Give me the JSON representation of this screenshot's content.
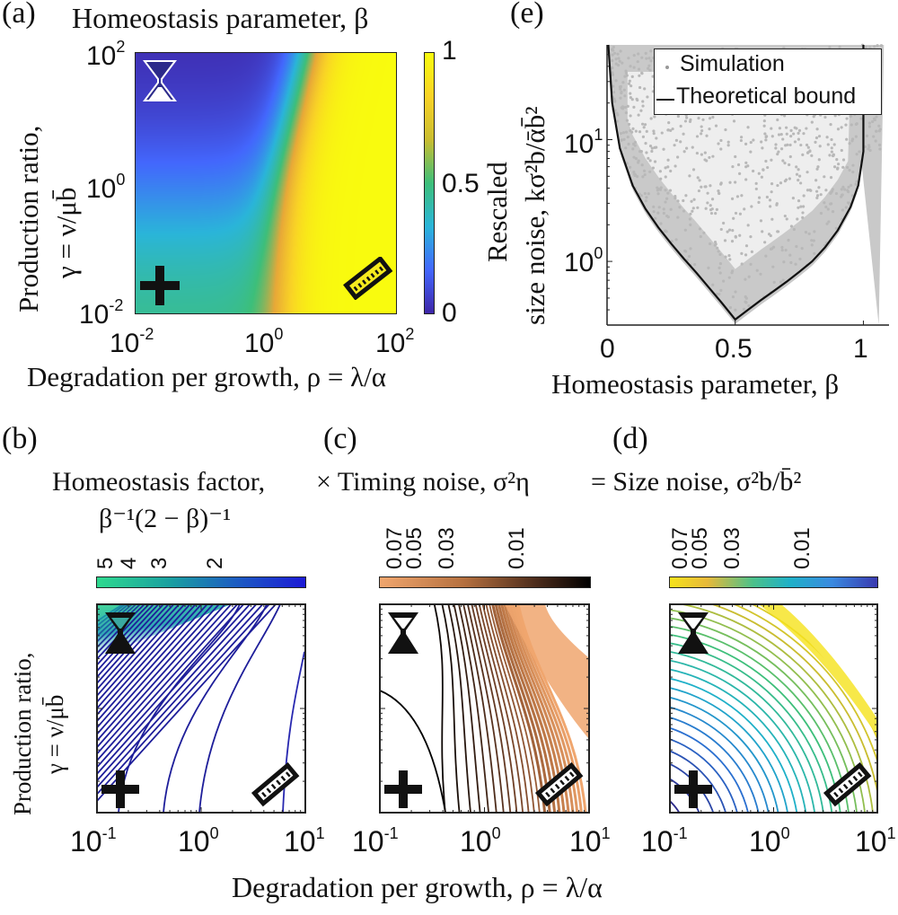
{
  "figure": {
    "panel_labels": [
      "(a)",
      "(b)",
      "(c)",
      "(d)",
      "(e)"
    ],
    "shared_x_axis_label": "Degradation per growth, ρ = λ/α",
    "shared_y_axis_label_line1": "Production ratio,",
    "shared_y_axis_label_line2": "γ = ν/μb̄",
    "bottom_row_title_parts": [
      "Homeostasis factor,",
      "× Timing noise, σ²η",
      "= Size noise, σ²b/b̄²"
    ],
    "icons": [
      "hourglass-icon",
      "plus-icon",
      "ruler-icon"
    ]
  },
  "chart_data": [
    {
      "id": "a",
      "type": "heatmap",
      "title": "Homeostasis parameter, β",
      "xlabel": "Degradation per growth, ρ = λ/α",
      "ylabel": "Production ratio, γ = ν/μb̄",
      "xscale": "log",
      "yscale": "log",
      "xlim": [
        0.01,
        100
      ],
      "ylim": [
        0.01,
        100
      ],
      "xticks": [
        {
          "base": "10",
          "exp": "-2"
        },
        {
          "base": "10",
          "exp": "0"
        },
        {
          "base": "10",
          "exp": "2"
        }
      ],
      "yticks": [
        {
          "base": "10",
          "exp": "-2"
        },
        {
          "base": "10",
          "exp": "0"
        },
        {
          "base": "10",
          "exp": "2"
        }
      ],
      "colorbar": {
        "label": "β",
        "range": [
          0,
          1
        ],
        "ticks": [
          "0",
          "0.5",
          "1"
        ],
        "colormap": "parula"
      },
      "corner_markers": {
        "top-left": "hourglass",
        "bottom-left": "plus",
        "bottom-right": "ruler"
      },
      "description": "β≈0 (dark blue) upper-left, ≈0.5 (teal) lower-left, ≈1 (yellow) for ρ ≳ 3"
    },
    {
      "id": "e",
      "type": "scatter",
      "title": "",
      "xlabel": "Homeostasis parameter, β",
      "ylabel_line1": "Rescaled",
      "ylabel_line2": "size noise, kσ²b/ᾱb̄²",
      "xlim": [
        0,
        1.1
      ],
      "ylim": [
        0.3,
        60
      ],
      "yscale": "log",
      "xticks": [
        "0",
        "0.5",
        "1"
      ],
      "yticks": [
        {
          "base": "10",
          "exp": "0"
        },
        {
          "base": "10",
          "exp": "1"
        }
      ],
      "legend": {
        "position": "top-right",
        "entries": [
          {
            "label": "Simulation",
            "style": "gray-dot"
          },
          {
            "label": "Theoretical bound",
            "style": "black-line"
          }
        ]
      },
      "series": [
        {
          "name": "Theoretical bound",
          "type": "line",
          "x": [
            0.005,
            0.02,
            0.05,
            0.1,
            0.15,
            0.2,
            0.25,
            0.3,
            0.35,
            0.4,
            0.45,
            0.5,
            0.55,
            0.6,
            0.65,
            0.7,
            0.75,
            0.8,
            0.85,
            0.9,
            0.95,
            0.98,
            1.0,
            1.0
          ],
          "y": [
            60,
            20,
            8.5,
            4.2,
            2.7,
            1.9,
            1.4,
            1.05,
            0.8,
            0.6,
            0.45,
            0.333,
            0.4,
            0.48,
            0.57,
            0.68,
            0.82,
            1.0,
            1.3,
            1.8,
            2.8,
            4.2,
            8,
            60
          ]
        },
        {
          "name": "Simulation",
          "type": "scatter",
          "description": "dense gray cloud above the bound, x in [0,1.08], y in [0.33,60]"
        }
      ]
    },
    {
      "id": "b",
      "type": "contour",
      "xlabel": "Degradation per growth, ρ = λ/α",
      "xscale": "log",
      "yscale": "log",
      "xlim": [
        0.1,
        10
      ],
      "xticks": [
        {
          "base": "10",
          "exp": "-1"
        },
        {
          "base": "10",
          "exp": "0"
        },
        {
          "base": "10",
          "exp": "1"
        }
      ],
      "colorbar": {
        "label": "β⁻¹(2 − β)⁻¹",
        "ticks": [
          "5",
          "4",
          "3",
          "2"
        ],
        "colors": [
          "#2fd98f",
          "#1c1ad6"
        ]
      },
      "line_color": "#1e1e9a"
    },
    {
      "id": "c",
      "type": "contour",
      "xlabel": "Degradation per growth, ρ = λ/α",
      "xscale": "log",
      "yscale": "log",
      "xlim": [
        0.1,
        10
      ],
      "xticks": [
        {
          "base": "10",
          "exp": "-1"
        },
        {
          "base": "10",
          "exp": "0"
        },
        {
          "base": "10",
          "exp": "1"
        }
      ],
      "colorbar": {
        "label": "σ²η",
        "ticks": [
          "0.07",
          "0.05",
          "0.03",
          "0.01"
        ],
        "colors": [
          "#f0a66e",
          "#000000"
        ]
      }
    },
    {
      "id": "d",
      "type": "contour",
      "xlabel": "Degradation per growth, ρ = λ/α",
      "xscale": "log",
      "yscale": "log",
      "xlim": [
        0.1,
        10
      ],
      "xticks": [
        {
          "base": "10",
          "exp": "-1"
        },
        {
          "base": "10",
          "exp": "0"
        },
        {
          "base": "10",
          "exp": "1"
        }
      ],
      "colorbar": {
        "label": "σ²b/b̄²",
        "ticks": [
          "0.07",
          "0.05",
          "0.03",
          "0.01"
        ],
        "colors": [
          "#f5e21c",
          "#3a3ab0"
        ]
      }
    }
  ]
}
